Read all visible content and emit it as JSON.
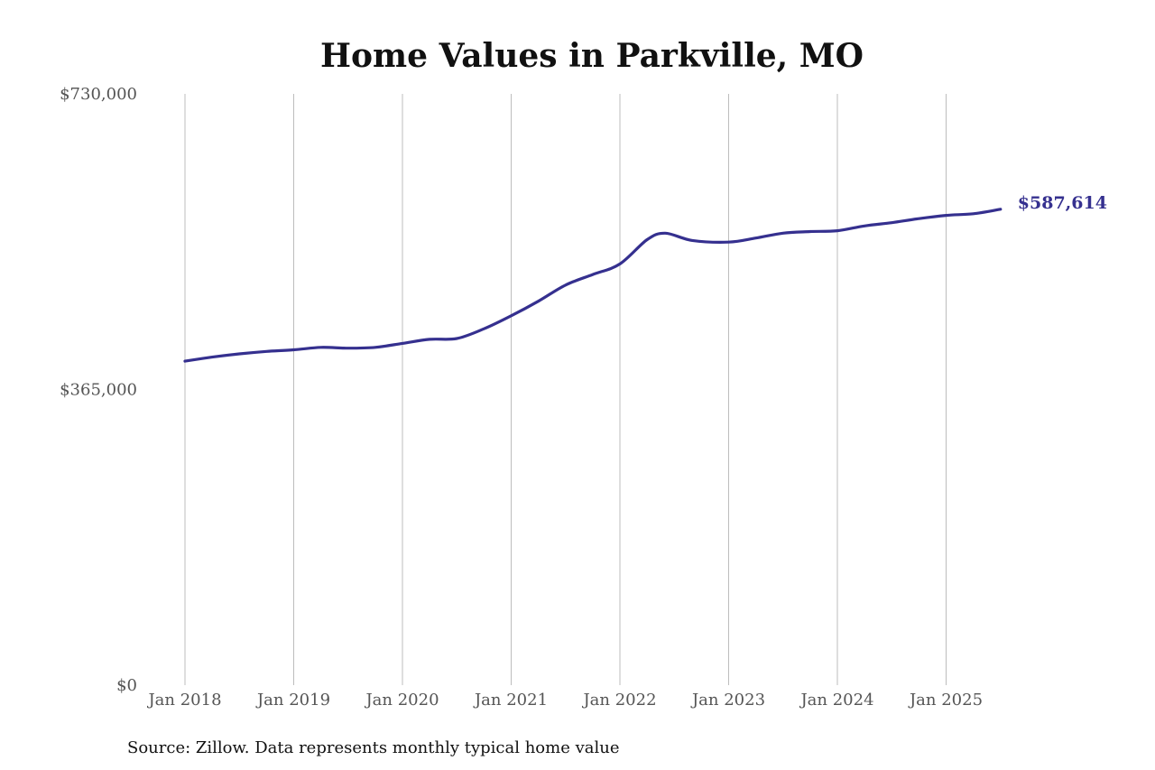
{
  "chart_data": {
    "type": "line",
    "title": "Home Values in Parkville, MO",
    "source_note": "Source: Zillow. Data represents monthly typical home value",
    "end_label": "$587,614",
    "line_color": "#35308f",
    "xlabel": "",
    "ylabel": "",
    "ylim": [
      0,
      730000
    ],
    "y_ticks": [
      {
        "value": 0,
        "label": "$0"
      },
      {
        "value": 365000,
        "label": "$365,000"
      },
      {
        "value": 730000,
        "label": "$730,000"
      }
    ],
    "x_ticks": [
      {
        "value": "2018-01",
        "label": "Jan 2018"
      },
      {
        "value": "2019-01",
        "label": "Jan 2019"
      },
      {
        "value": "2020-01",
        "label": "Jan 2020"
      },
      {
        "value": "2021-01",
        "label": "Jan 2021"
      },
      {
        "value": "2022-01",
        "label": "Jan 2022"
      },
      {
        "value": "2023-01",
        "label": "Jan 2023"
      },
      {
        "value": "2024-01",
        "label": "Jan 2024"
      },
      {
        "value": "2025-01",
        "label": "Jan 2025"
      }
    ],
    "grid": {
      "vertical": true,
      "horizontal": false
    },
    "series": [
      {
        "points": [
          {
            "x": "2018-01",
            "y": 400000
          },
          {
            "x": "2018-04",
            "y": 405000
          },
          {
            "x": "2018-07",
            "y": 409000
          },
          {
            "x": "2018-10",
            "y": 412000
          },
          {
            "x": "2019-01",
            "y": 414000
          },
          {
            "x": "2019-04",
            "y": 417000
          },
          {
            "x": "2019-07",
            "y": 416000
          },
          {
            "x": "2019-10",
            "y": 417000
          },
          {
            "x": "2020-01",
            "y": 422000
          },
          {
            "x": "2020-04",
            "y": 427000
          },
          {
            "x": "2020-07",
            "y": 428000
          },
          {
            "x": "2020-10",
            "y": 440000
          },
          {
            "x": "2021-01",
            "y": 456000
          },
          {
            "x": "2021-04",
            "y": 474000
          },
          {
            "x": "2021-07",
            "y": 494000
          },
          {
            "x": "2021-10",
            "y": 507000
          },
          {
            "x": "2022-01",
            "y": 520000
          },
          {
            "x": "2022-04",
            "y": 550000
          },
          {
            "x": "2022-06",
            "y": 558000
          },
          {
            "x": "2022-09",
            "y": 549000
          },
          {
            "x": "2023-01",
            "y": 547000
          },
          {
            "x": "2023-04",
            "y": 552000
          },
          {
            "x": "2023-07",
            "y": 558000
          },
          {
            "x": "2023-10",
            "y": 560000
          },
          {
            "x": "2024-01",
            "y": 561000
          },
          {
            "x": "2024-04",
            "y": 567000
          },
          {
            "x": "2024-07",
            "y": 571000
          },
          {
            "x": "2024-10",
            "y": 576000
          },
          {
            "x": "2025-01",
            "y": 580000
          },
          {
            "x": "2025-04",
            "y": 582000
          },
          {
            "x": "2025-07",
            "y": 587614
          }
        ]
      }
    ]
  }
}
